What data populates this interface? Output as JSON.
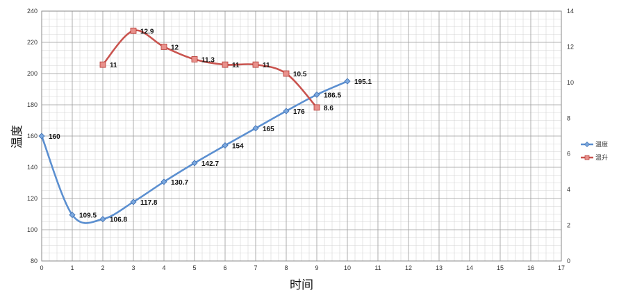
{
  "chart_data": {
    "type": "line",
    "xlabel": "时间",
    "ylabel": "温度",
    "x_ticks": [
      0,
      1,
      2,
      3,
      4,
      5,
      6,
      7,
      8,
      9,
      10,
      11,
      12,
      13,
      14,
      15,
      16,
      17
    ],
    "xlim": [
      0,
      17
    ],
    "ylim_left": [
      80,
      240
    ],
    "y_ticks_left": [
      80,
      100,
      120,
      140,
      160,
      180,
      200,
      220,
      240
    ],
    "ylim_right": [
      0,
      14
    ],
    "y_ticks_right": [
      0,
      2,
      4,
      6,
      8,
      10,
      12,
      14
    ],
    "grid": true,
    "legend_position": "right",
    "series": [
      {
        "name": "温度",
        "axis": "left",
        "color": "#5b8fd0",
        "marker": "diamond",
        "x": [
          0,
          1,
          2,
          3,
          4,
          5,
          6,
          7,
          8,
          9,
          10
        ],
        "values": [
          160,
          109.5,
          106.8,
          117.8,
          130.7,
          142.7,
          154,
          165,
          176,
          186.5,
          195.1
        ]
      },
      {
        "name": "温升",
        "axis": "right",
        "color": "#c9544f",
        "marker": "square",
        "x": [
          2,
          3,
          4,
          5,
          6,
          7,
          8,
          9
        ],
        "values": [
          11,
          12.9,
          12,
          11.3,
          11,
          11,
          10.5,
          8.6
        ]
      }
    ]
  }
}
